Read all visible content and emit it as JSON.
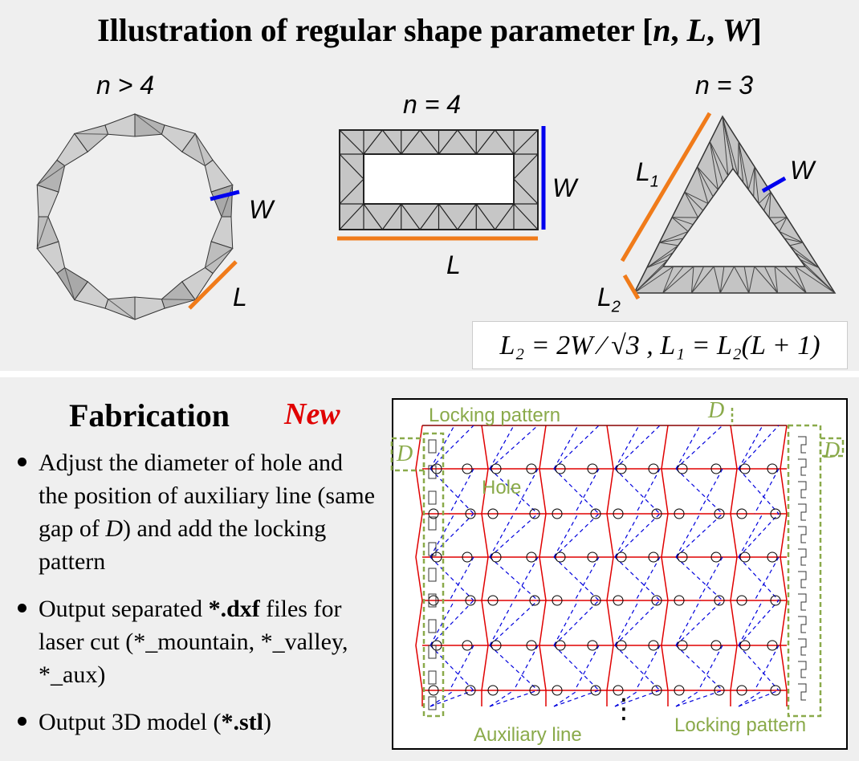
{
  "top": {
    "title_prefix": "Illustration of regular shape parameter [",
    "title_n": "n",
    "title_sep1": ", ",
    "title_L": "L",
    "title_sep2": ", ",
    "title_W": "W",
    "title_suffix": "]",
    "ring": {
      "n_label": "n > 4",
      "W_label": "W",
      "L_label": "L"
    },
    "rectangle": {
      "n_label": "n = 4",
      "W_label": "W",
      "L_label": "L"
    },
    "triangle": {
      "n_label": "n = 3",
      "W_label": "W",
      "L1_label": "L",
      "L1_sub": "1",
      "L2_label": "L",
      "L2_sub": "2"
    },
    "formula": "L₂ = 2W ⁄ √3 ,  L₁ = L₂(L + 1)"
  },
  "fabrication": {
    "title": "Fabrication",
    "new_tag": "New",
    "bullets": [
      {
        "parts": [
          "Adjust the diameter of hole and the position of auxiliary line (same gap of ",
          "D",
          ") and add the locking pattern"
        ]
      },
      {
        "parts": [
          "Output separated ",
          "*.dxf",
          "  files for laser cut (*_mountain, *_valley, *_aux)"
        ]
      },
      {
        "parts": [
          "Output 3D model (",
          "*.stl",
          ")"
        ]
      }
    ],
    "diagram": {
      "locking_top": "Locking pattern",
      "locking_bottom": "Locking pattern",
      "hole": "Hole",
      "aux": "Auxiliary line",
      "D_top": "D",
      "D_left": "D",
      "D_right": "D",
      "ellipsis": "⋮"
    }
  },
  "colors": {
    "mountain": "#e00000",
    "valley": "#0000dd",
    "lock": "#8aaa4a",
    "highlight_W": "#0000ee",
    "highlight_L": "#f07b1a"
  }
}
